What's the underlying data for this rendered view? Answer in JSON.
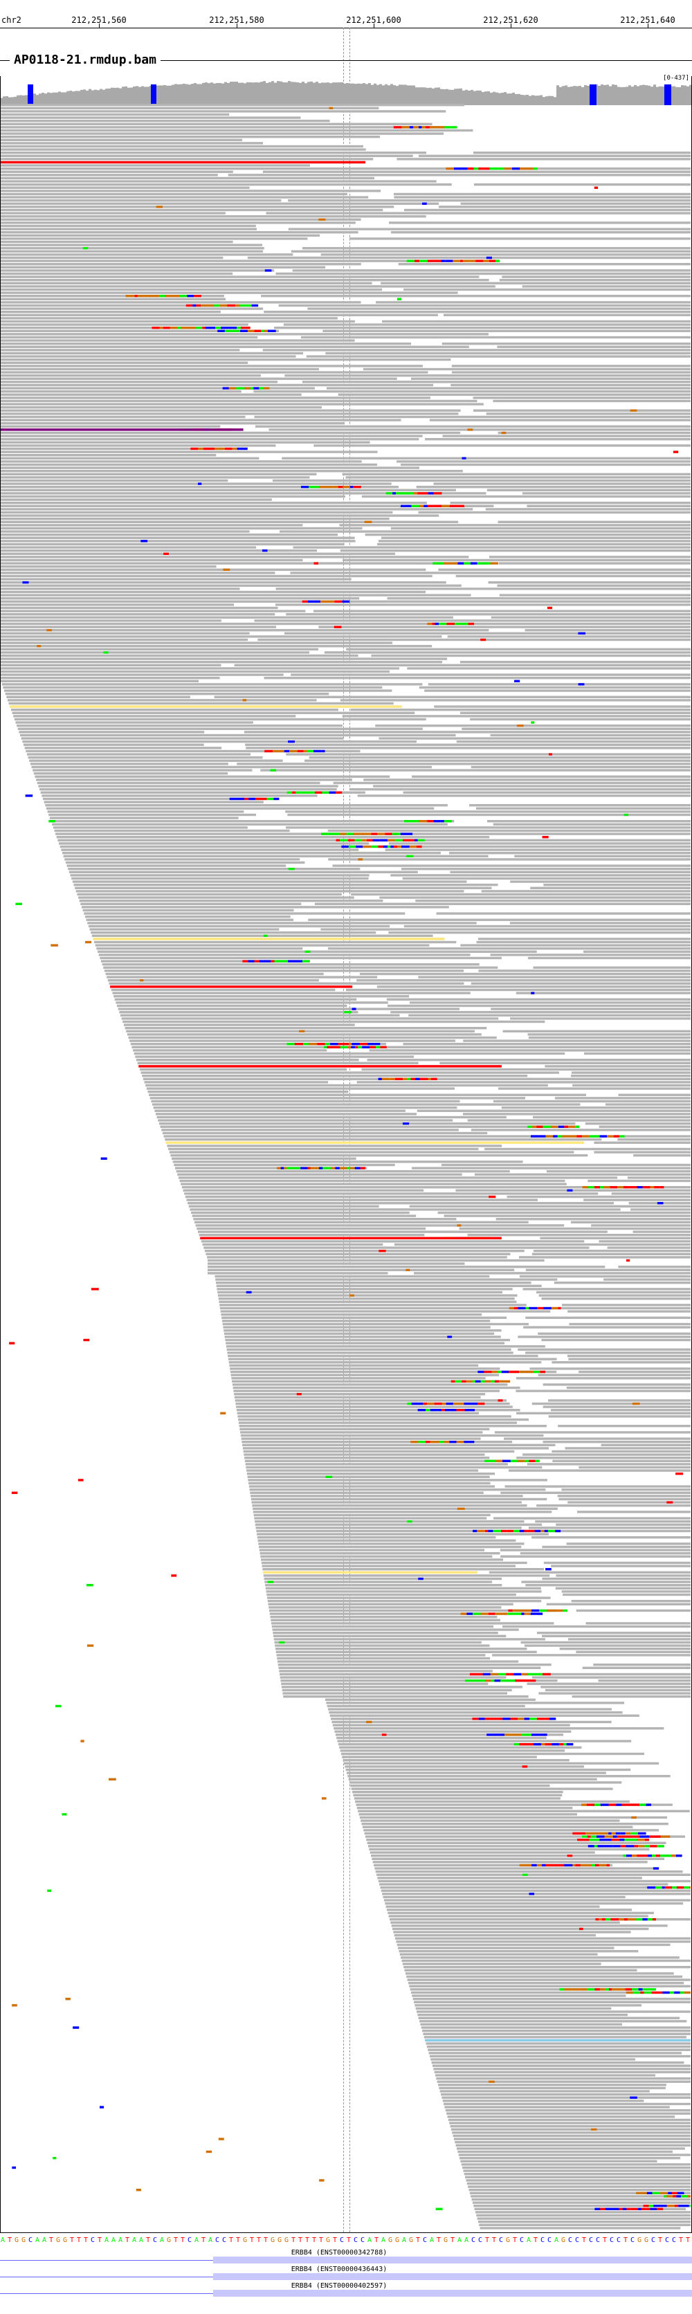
{
  "ruler": {
    "chrom": "chr2",
    "ticks": [
      "212,251,560",
      "212,251,580",
      "212,251,600",
      "212,251,620",
      "212,251,640"
    ]
  },
  "track": {
    "title": "AP0118-21.rmdup.bam",
    "coverage_range": "[0-437]"
  },
  "colors": {
    "read": "#b4b4b4",
    "coverage": "#a9a9a9",
    "A": "#00ee00",
    "C": "#0000ff",
    "G": "#d17105",
    "T": "#ff0000",
    "insertion": "#800080",
    "gene": "#6a6aff"
  },
  "sequence": "ATGGCAATGGTTTCTAAATAATCAGTTCATACCTTGTTTGGGTTTTTGTCTCCATAGGAGTCATGTAACCTTCGTCATCCAGCCTCCTCCTCGGCTCCTT",
  "genes": [
    {
      "label": "ERBB4 (ENST00000342788)"
    },
    {
      "label": "ERBB4 (ENST00000436443)"
    },
    {
      "label": "ERBB4 (ENST00000402597)"
    }
  ]
}
